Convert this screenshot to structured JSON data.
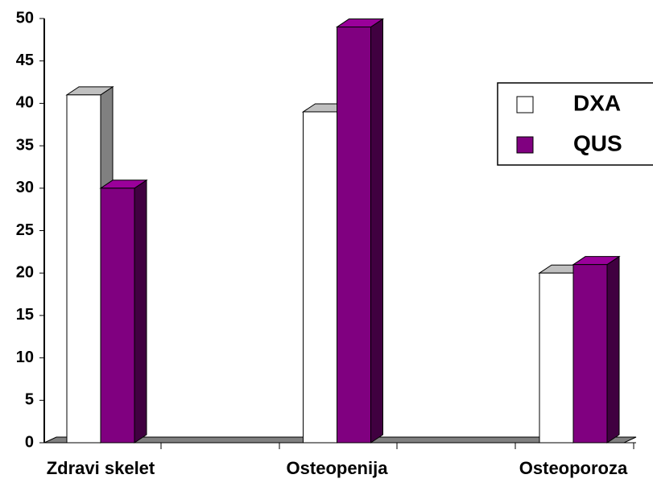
{
  "chart_data": {
    "type": "bar3d",
    "categories": [
      "Zdravi skelet",
      "Osteopenija",
      "Osteoporoza"
    ],
    "series": [
      {
        "name": "DXA",
        "color": "#ffffff",
        "values": [
          41,
          39,
          20
        ]
      },
      {
        "name": "QUS",
        "color": "#800080",
        "values": [
          30,
          49,
          21
        ]
      }
    ],
    "ylim": [
      0,
      50
    ],
    "yticks": [
      0,
      5,
      10,
      15,
      20,
      25,
      30,
      35,
      40,
      45,
      50
    ],
    "legend": "right"
  }
}
